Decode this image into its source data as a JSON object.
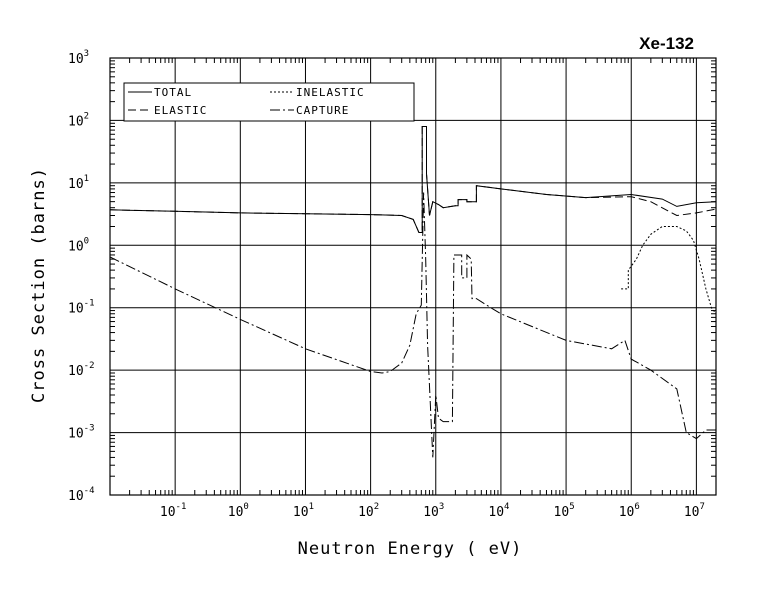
{
  "chart_data": {
    "type": "line",
    "title": "Xe-132",
    "xlabel": "Neutron Energy ( eV)",
    "ylabel": "Cross Section (barns)",
    "x_scale": "log",
    "y_scale": "log",
    "xlim": [
      0.01,
      20000000
    ],
    "ylim": [
      0.0001,
      1000
    ],
    "grid": true,
    "legend_position": "top-left",
    "x_ticks": [
      {
        "base": "10",
        "exp": "-1",
        "value": 0.1
      },
      {
        "base": "10",
        "exp": "0",
        "value": 1
      },
      {
        "base": "10",
        "exp": "1",
        "value": 10
      },
      {
        "base": "10",
        "exp": "2",
        "value": 100
      },
      {
        "base": "10",
        "exp": "3",
        "value": 1000
      },
      {
        "base": "10",
        "exp": "4",
        "value": 10000
      },
      {
        "base": "10",
        "exp": "5",
        "value": 100000
      },
      {
        "base": "10",
        "exp": "6",
        "value": 1000000
      },
      {
        "base": "10",
        "exp": "7",
        "value": 10000000
      }
    ],
    "y_ticks": [
      {
        "base": "10",
        "exp": "3",
        "value": 1000
      },
      {
        "base": "10",
        "exp": "2",
        "value": 100
      },
      {
        "base": "10",
        "exp": "1",
        "value": 10
      },
      {
        "base": "10",
        "exp": "0",
        "value": 1
      },
      {
        "base": "10",
        "exp": "-1",
        "value": 0.1
      },
      {
        "base": "10",
        "exp": "-2",
        "value": 0.01
      },
      {
        "base": "10",
        "exp": "-3",
        "value": 0.001
      },
      {
        "base": "10",
        "exp": "-4",
        "value": 0.0001
      }
    ],
    "series": [
      {
        "name": "TOTAL",
        "dash": "none",
        "points": [
          [
            0.01,
            3.7
          ],
          [
            0.1,
            3.5
          ],
          [
            1,
            3.3
          ],
          [
            10,
            3.2
          ],
          [
            100,
            3.1
          ],
          [
            300,
            3.0
          ],
          [
            450,
            2.6
          ],
          [
            550,
            1.6
          ],
          [
            620,
            1.6
          ],
          [
            620,
            80
          ],
          [
            720,
            80
          ],
          [
            720,
            14
          ],
          [
            800,
            3.0
          ],
          [
            900,
            5.0
          ],
          [
            1100,
            4.5
          ],
          [
            1300,
            4.0
          ],
          [
            2000,
            4.3
          ],
          [
            2200,
            4.3
          ],
          [
            2200,
            5.4
          ],
          [
            3000,
            5.4
          ],
          [
            3000,
            5.0
          ],
          [
            4200,
            5.0
          ],
          [
            4200,
            9.0
          ],
          [
            10000,
            8.0
          ],
          [
            50000,
            6.5
          ],
          [
            200000,
            5.8
          ],
          [
            1000000,
            6.5
          ],
          [
            3000000,
            5.5
          ],
          [
            5000000,
            4.2
          ],
          [
            10000000,
            4.8
          ],
          [
            20000000,
            5.0
          ]
        ]
      },
      {
        "name": "ELASTIC",
        "dash": "8,4",
        "points": [
          [
            0.01,
            3.7
          ],
          [
            0.1,
            3.5
          ],
          [
            1,
            3.3
          ],
          [
            10,
            3.2
          ],
          [
            100,
            3.1
          ],
          [
            300,
            3.0
          ],
          [
            450,
            2.6
          ],
          [
            550,
            1.6
          ],
          [
            620,
            1.6
          ],
          [
            620,
            80
          ],
          [
            720,
            80
          ],
          [
            720,
            14
          ],
          [
            800,
            3.0
          ],
          [
            900,
            5.0
          ],
          [
            1100,
            4.5
          ],
          [
            1300,
            4.0
          ],
          [
            2000,
            4.3
          ],
          [
            2200,
            4.3
          ],
          [
            2200,
            5.4
          ],
          [
            3000,
            5.4
          ],
          [
            3000,
            5.0
          ],
          [
            4200,
            5.0
          ],
          [
            4200,
            9.0
          ],
          [
            10000,
            8.0
          ],
          [
            50000,
            6.5
          ],
          [
            200000,
            5.8
          ],
          [
            1000000,
            6.0
          ],
          [
            2000000,
            5.0
          ],
          [
            5000000,
            3.0
          ],
          [
            10000000,
            3.3
          ],
          [
            20000000,
            3.8
          ]
        ]
      },
      {
        "name": "INELASTIC",
        "dash": "2,2",
        "points": [
          [
            700000,
            0.2
          ],
          [
            900000,
            0.2
          ],
          [
            900000,
            0.4
          ],
          [
            1200000,
            0.6
          ],
          [
            1500000,
            1.0
          ],
          [
            2000000,
            1.5
          ],
          [
            3000000,
            2.0
          ],
          [
            5000000,
            2.0
          ],
          [
            7000000,
            1.7
          ],
          [
            9000000,
            1.2
          ],
          [
            11000000,
            0.6
          ],
          [
            14000000,
            0.2
          ],
          [
            17000000,
            0.1
          ],
          [
            20000000,
            0.08
          ]
        ]
      },
      {
        "name": "CAPTURE",
        "dash": "10,3,2,3",
        "points": [
          [
            0.01,
            0.65
          ],
          [
            0.1,
            0.2
          ],
          [
            1,
            0.065
          ],
          [
            10,
            0.022
          ],
          [
            100,
            0.0095
          ],
          [
            150,
            0.009
          ],
          [
            200,
            0.0095
          ],
          [
            300,
            0.013
          ],
          [
            400,
            0.025
          ],
          [
            500,
            0.08
          ],
          [
            600,
            0.11
          ],
          [
            650,
            7.0
          ],
          [
            700,
            0.6
          ],
          [
            750,
            0.025
          ],
          [
            900,
            0.0004
          ],
          [
            1000,
            0.004
          ],
          [
            1100,
            0.0017
          ],
          [
            1300,
            0.0015
          ],
          [
            1800,
            0.0015
          ],
          [
            1900,
            0.7
          ],
          [
            2500,
            0.7
          ],
          [
            2500,
            0.3
          ],
          [
            3000,
            0.3
          ],
          [
            3000,
            0.7
          ],
          [
            3500,
            0.6
          ],
          [
            3600,
            0.14
          ],
          [
            4200,
            0.14
          ],
          [
            7000,
            0.1
          ],
          [
            10000,
            0.08
          ],
          [
            30000,
            0.05
          ],
          [
            100000,
            0.03
          ],
          [
            500000,
            0.022
          ],
          [
            800000,
            0.03
          ],
          [
            1000000,
            0.015
          ],
          [
            2000000,
            0.01
          ],
          [
            5000000,
            0.005
          ],
          [
            7000000,
            0.001
          ],
          [
            10000000,
            0.0008
          ],
          [
            14000000,
            0.0011
          ],
          [
            20000000,
            0.0011
          ]
        ]
      }
    ]
  }
}
